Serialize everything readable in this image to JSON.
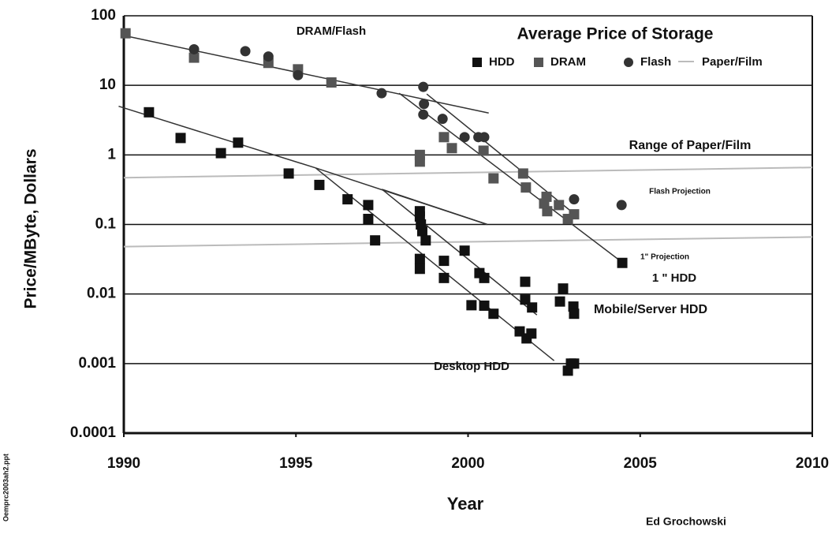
{
  "chart_data": {
    "type": "scatter",
    "title": "Average Price of Storage",
    "x_label": "Year",
    "y_label": "Price/MByte, Dollars",
    "log_y": true,
    "grid": true,
    "xlim": [
      1990,
      2010
    ],
    "xticks": [
      1990,
      1995,
      2000,
      2005,
      2010
    ],
    "ylim": [
      0.0001,
      100
    ],
    "yticks": [
      0.0001,
      0.001,
      0.01,
      0.1,
      1,
      10,
      100
    ],
    "series": [
      {
        "name": "HDD",
        "color": "#111111",
        "marker": "square",
        "x": [
          1990.73,
          1991.65,
          1992.82,
          1993.32,
          1994.79,
          1995.68,
          1996.5,
          1997.1,
          1997.1,
          1997.3,
          1998.6,
          1998.6,
          1998.63,
          1998.67,
          1998.77,
          1998.6,
          1998.6,
          1999.3,
          1999.3,
          1999.9,
          2000.1,
          2000.33,
          2000.47,
          2000.47,
          2000.74,
          2001.5,
          2001.66,
          2001.66,
          2001.7,
          2001.84,
          2001.86,
          2002.67,
          2002.76,
          2003.06,
          2003.08,
          2002.9,
          2002.99,
          2003.08,
          2004.48
        ],
        "values": [
          4.1,
          1.75,
          1.06,
          1.5,
          0.54,
          0.37,
          0.23,
          0.19,
          0.12,
          0.059,
          0.155,
          0.13,
          0.1,
          0.08,
          0.059,
          0.032,
          0.023,
          0.03,
          0.017,
          0.042,
          0.0069,
          0.02,
          0.017,
          0.0068,
          0.0052,
          0.0029,
          0.015,
          0.0083,
          0.0023,
          0.0027,
          0.0064,
          0.0078,
          0.012,
          0.0066,
          0.0052,
          0.00079,
          0.001,
          0.001,
          0.028
        ]
      },
      {
        "name": "DRAM",
        "color": "#555555",
        "marker": "square",
        "x": [
          1990.05,
          1992.04,
          1994.2,
          1995.06,
          1996.03,
          1998.6,
          1998.6,
          1999.3,
          1999.53,
          2000.45,
          2000.74,
          2001.6,
          2001.68,
          2002.28,
          2002.3,
          2002.21,
          2002.64,
          2002.9,
          2003.08
        ],
        "values": [
          56,
          25,
          21,
          17,
          11,
          1.0,
          0.8,
          1.8,
          1.25,
          1.15,
          0.46,
          0.54,
          0.34,
          0.25,
          0.155,
          0.2,
          0.19,
          0.12,
          0.14
        ]
      },
      {
        "name": "Flash",
        "color": "#333333",
        "marker": "circle",
        "x": [
          1992.04,
          1993.53,
          1994.2,
          1995.06,
          1997.49,
          1998.7,
          1998.72,
          1998.7,
          1999.26,
          1999.9,
          2000.3,
          2000.47,
          2003.08,
          2004.46
        ],
        "values": [
          33,
          31,
          26,
          14,
          7.7,
          9.5,
          5.4,
          3.8,
          3.3,
          1.8,
          1.8,
          1.8,
          0.23,
          0.19
        ]
      }
    ],
    "paper_film": {
      "name": "Paper/Film",
      "color": "#bbbbbb",
      "x": [
        1990,
        2010
      ],
      "upper": [
        0.47,
        0.66
      ],
      "lower": [
        0.048,
        0.066
      ]
    },
    "trend_lines": [
      {
        "x": [
          1990,
          2000.6
        ],
        "values": [
          52,
          4.0
        ]
      },
      {
        "x": [
          1998,
          2004.5
        ],
        "values": [
          7.7,
          0.028
        ]
      },
      {
        "x": [
          1998.8,
          2003.1
        ],
        "values": [
          7.5,
          0.14
        ]
      },
      {
        "x": [
          1989.85,
          1995.57
        ],
        "values": [
          5.0,
          0.65
        ]
      },
      {
        "x": [
          1995.57,
          2000.56
        ],
        "values": [
          0.65,
          0.1
        ]
      },
      {
        "x": [
          1995.57,
          2002.5
        ],
        "values": [
          0.65,
          0.0011
        ]
      },
      {
        "x": [
          1997.5,
          2002
        ],
        "values": [
          0.32,
          0.005
        ]
      },
      {
        "x": [
          1997.5,
          2000.56
        ],
        "values": [
          0.32,
          0.1
        ]
      }
    ],
    "annotations": [
      "DRAM/Flash",
      "Range of Paper/Film",
      "Flash Projection",
      "1\"  Projection",
      "1 \" HDD",
      "Mobile/Server HDD",
      "Desktop HDD",
      "Ed Grochowski",
      "Oemprc2003ah2.ppt"
    ]
  }
}
